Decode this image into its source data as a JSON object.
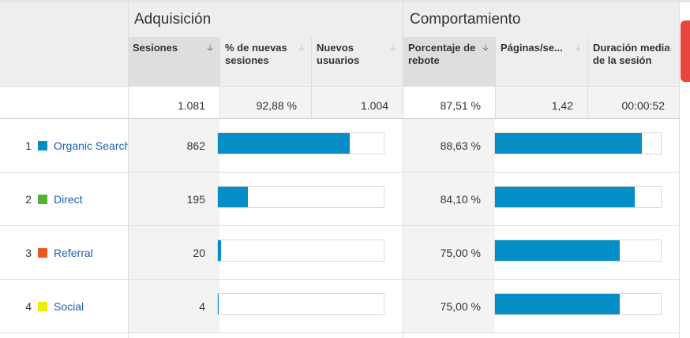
{
  "groups": {
    "acquisition": "Adquisición",
    "behavior": "Comportamiento"
  },
  "columns": [
    {
      "label": "Sesiones",
      "sorted": true
    },
    {
      "label": "% de nuevas sesiones",
      "sorted": false
    },
    {
      "label": "Nuevos usuarios",
      "sorted": false
    },
    {
      "label": "Porcentaje de rebote",
      "sorted": false
    },
    {
      "label": "Páginas/se...",
      "sorted": false
    },
    {
      "label": "Duración media de la sesión",
      "sorted": false
    }
  ],
  "totals": {
    "sessions": "1.081",
    "new_sessions_pct": "92,88 %",
    "new_users": "1.004",
    "bounce_rate": "87,51 %",
    "pages_per_session": "1,42",
    "avg_duration": "00:00:52"
  },
  "rows": [
    {
      "rank": "1",
      "name": "Organic Search",
      "color": "#058dc7",
      "sessions": "862",
      "sessions_fraction": 0.797,
      "bounce": "88,63 %",
      "bounce_fraction": 0.886
    },
    {
      "rank": "2",
      "name": "Direct",
      "color": "#50b432",
      "sessions": "195",
      "sessions_fraction": 0.18,
      "bounce": "84,10 %",
      "bounce_fraction": 0.841
    },
    {
      "rank": "3",
      "name": "Referral",
      "color": "#ed561b",
      "sessions": "20",
      "sessions_fraction": 0.019,
      "bounce": "75,00 %",
      "bounce_fraction": 0.75
    },
    {
      "rank": "4",
      "name": "Social",
      "color": "#edef00",
      "sessions": "4",
      "sessions_fraction": 0.004,
      "bounce": "75,00 %",
      "bounce_fraction": 0.75
    }
  ]
}
